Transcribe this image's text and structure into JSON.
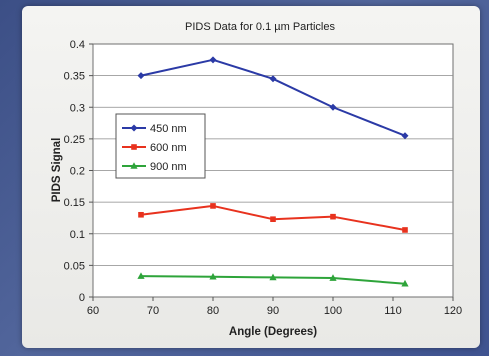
{
  "chart_data": {
    "type": "line",
    "title": "PIDS Data for 0.1 µm Particles",
    "xlabel": "Angle (Degrees)",
    "ylabel": "PIDS Signal",
    "xlim": [
      60,
      120
    ],
    "ylim": [
      0,
      0.4
    ],
    "xticks": [
      60,
      70,
      80,
      90,
      100,
      110,
      120
    ],
    "yticks": [
      0,
      0.05,
      0.1,
      0.15,
      0.2,
      0.25,
      0.3,
      0.35,
      0.4
    ],
    "ytick_labels": [
      "0",
      "0.05",
      "0.1",
      "0.15",
      "0.2",
      "0.25",
      "0.3",
      "0.35",
      "0.4"
    ],
    "grid": "horizontal",
    "legend_position": "left",
    "series": [
      {
        "name": "450 nm",
        "color": "#2b3aa6",
        "marker": "diamond",
        "x": [
          68,
          80,
          90,
          100,
          112
        ],
        "y": [
          0.35,
          0.375,
          0.345,
          0.3,
          0.255
        ]
      },
      {
        "name": "600 nm",
        "color": "#e8321e",
        "marker": "square",
        "x": [
          68,
          80,
          90,
          100,
          112
        ],
        "y": [
          0.13,
          0.144,
          0.123,
          0.127,
          0.106
        ]
      },
      {
        "name": "900 nm",
        "color": "#2ea43a",
        "marker": "triangle",
        "x": [
          68,
          80,
          90,
          100,
          112
        ],
        "y": [
          0.033,
          0.032,
          0.031,
          0.03,
          0.021
        ]
      }
    ]
  }
}
